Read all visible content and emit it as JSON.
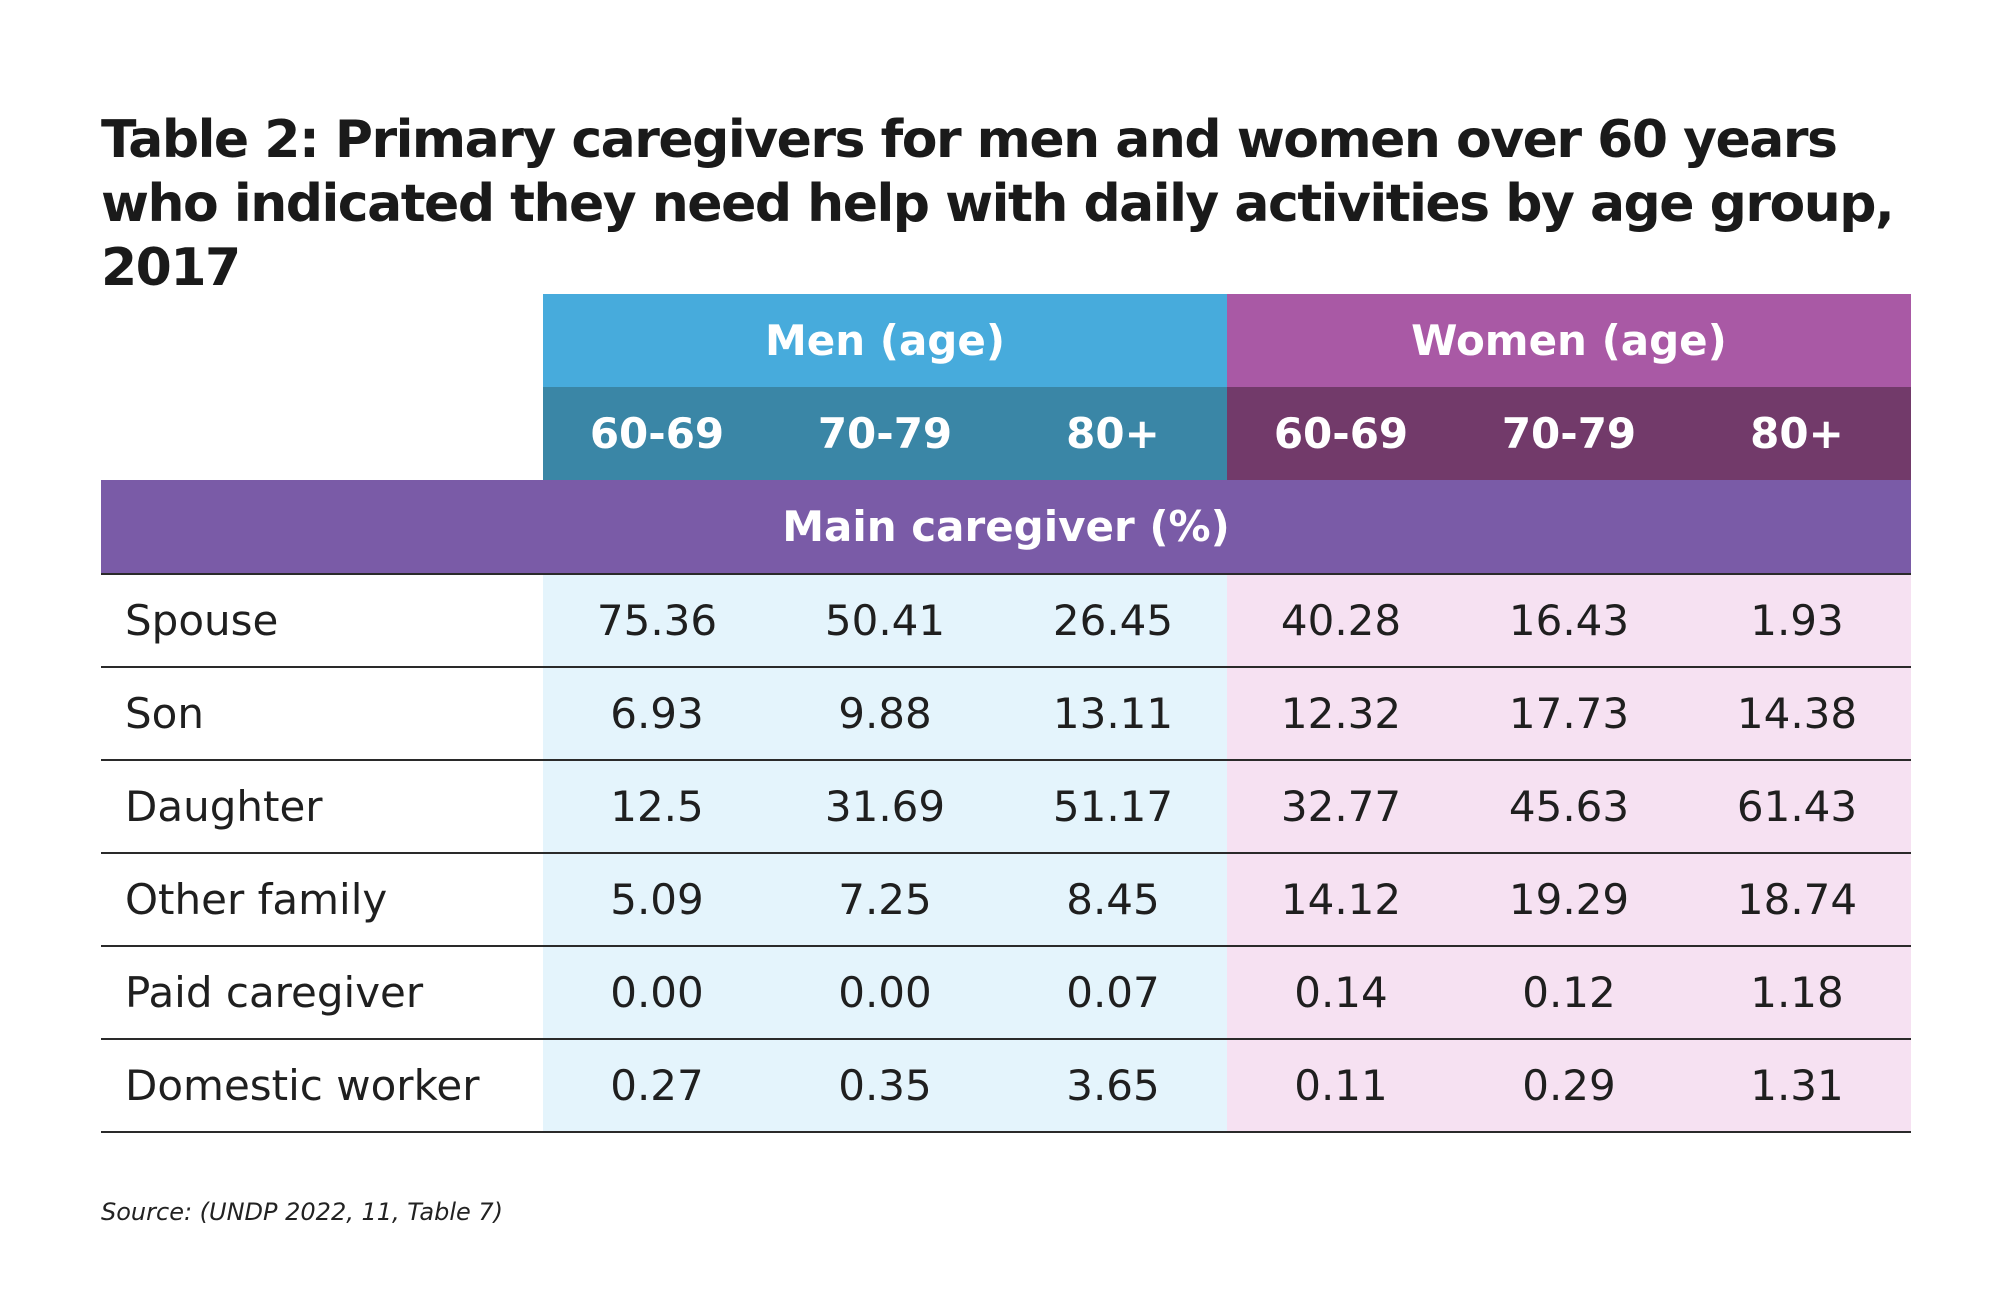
{
  "title": "Table 2: Primary caregivers for men and women over 60 years who indicated they need help with daily activities by age group, 2017",
  "groups": {
    "men": "Men (age)",
    "women": "Women (age)"
  },
  "age_headers": [
    "60-69",
    "70-79",
    "80+",
    "60-69",
    "70-79",
    "80+"
  ],
  "section_label": "Main caregiver (%)",
  "rows": [
    {
      "label": "Spouse",
      "values": [
        "75.36",
        "50.41",
        "26.45",
        "40.28",
        "16.43",
        "1.93"
      ]
    },
    {
      "label": "Son",
      "values": [
        "6.93",
        "9.88",
        "13.11",
        "12.32",
        "17.73",
        "14.38"
      ]
    },
    {
      "label": "Daughter",
      "values": [
        "12.5",
        "31.69",
        "51.17",
        "32.77",
        "45.63",
        "61.43"
      ]
    },
    {
      "label": "Other family",
      "values": [
        "5.09",
        "7.25",
        "8.45",
        "14.12",
        "19.29",
        "18.74"
      ]
    },
    {
      "label": "Paid caregiver",
      "values": [
        "0.00",
        "0.00",
        "0.07",
        "0.14",
        "0.12",
        "1.18"
      ]
    },
    {
      "label": "Domestic worker",
      "values": [
        "0.27",
        "0.35",
        "3.65",
        "0.11",
        "0.29",
        "1.31"
      ]
    }
  ],
  "source": "Source: (UNDP 2022, 11, Table 7)",
  "colors": {
    "men_group": "#47abdc",
    "men_age": "#3a86a6",
    "men_cell": "#e4f4fc",
    "women_group": "#a959a5",
    "women_age": "#723a6a",
    "women_cell": "#f6e1f2",
    "section": "#7a5ba7"
  }
}
